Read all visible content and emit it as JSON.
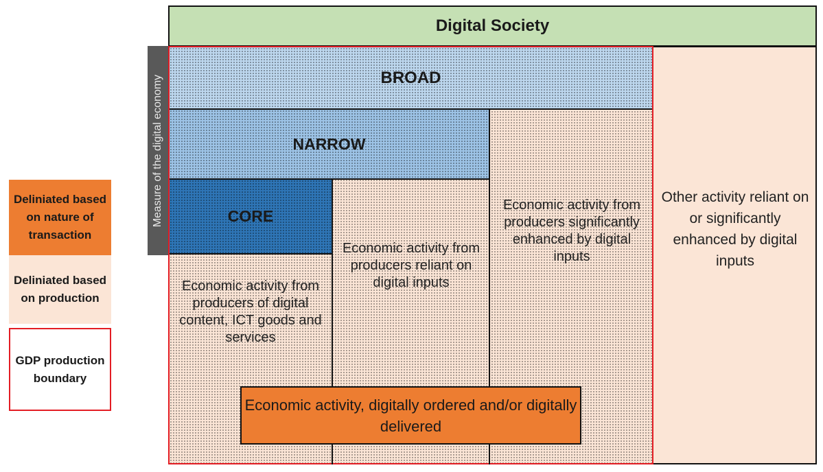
{
  "diagram": {
    "society_label": "Digital Society",
    "measure_label": "Measure of the digital economy",
    "broad_label": "BROAD",
    "narrow_label": "NARROW",
    "core_label": "CORE",
    "core_text": "Economic activity from producers of digital content, ICT goods and services",
    "reliant_text": "Economic activity from producers reliant on digital inputs",
    "enhanced_text": "Economic activity from producers significantly enhanced by digital inputs",
    "other_text": "Other activity reliant on or significantly enhanced by digital inputs",
    "ordered_text": "Economic activity, digitally ordered and/or digitally delivered"
  },
  "legend": {
    "nature": "Deliniated based on nature of transaction",
    "production": "Deliniated based on production",
    "gdp": "GDP production boundary"
  },
  "colors": {
    "society": "#c5e0b4",
    "broad": "#bdd7ee",
    "narrow": "#9dc3e6",
    "core": "#2e75b6",
    "production": "#fbe5d6",
    "transaction": "#ed7d31",
    "gdp_border": "#e31c23",
    "measure_bar": "#595959"
  }
}
